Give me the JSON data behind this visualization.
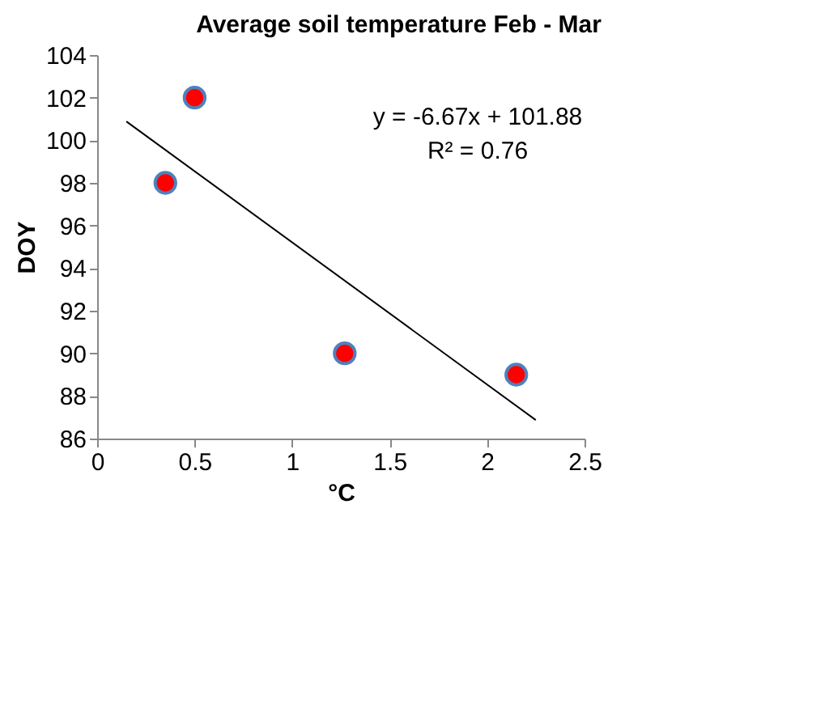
{
  "chart_data": {
    "type": "scatter",
    "title": "Average soil temperature Feb - Mar",
    "xlabel": "°C",
    "ylabel": "DOY",
    "xlim": [
      0,
      2.5
    ],
    "xticks": [
      0,
      0.5,
      1,
      1.5,
      2,
      2.5
    ],
    "ylim": [
      86,
      104
    ],
    "yticks": [
      86,
      88,
      90,
      92,
      94,
      96,
      98,
      100,
      102,
      104
    ],
    "grid": false,
    "legend": false,
    "series": [
      {
        "color": "#ff0000",
        "x": [
          0.35,
          0.5,
          1.27,
          2.15
        ],
        "values": [
          98,
          102,
          90,
          89
        ],
        "marker": "circle"
      },
      {
        "type": "line",
        "color": "#000000",
        "x": [
          0.15,
          2.25
        ],
        "values": [
          100.88,
          86.87
        ],
        "line_style": "solid"
      }
    ],
    "annotations": [
      "y = -6.67x + 101.88",
      "R² = 0.76"
    ]
  }
}
